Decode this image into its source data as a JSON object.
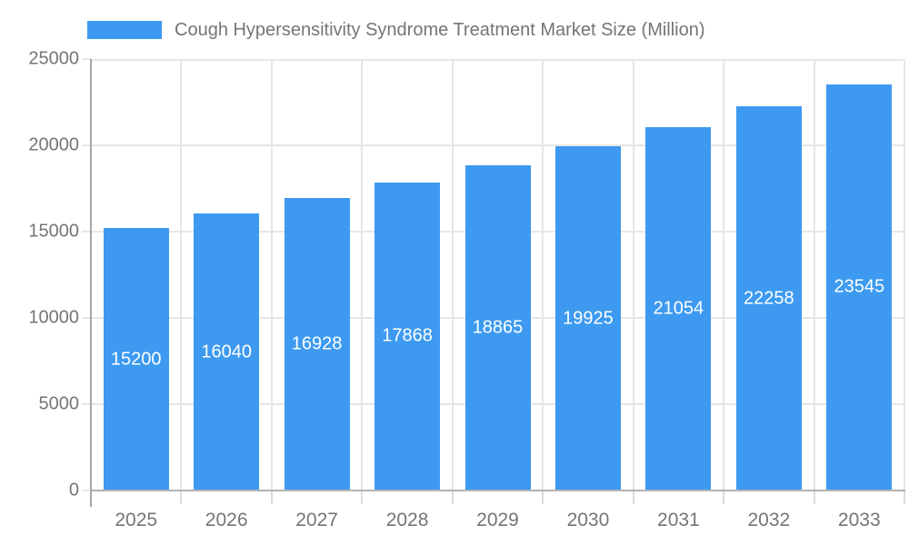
{
  "chart_data": {
    "type": "bar",
    "title": "Cough Hypersensitivity Syndrome Treatment Market Size (Million)",
    "categories": [
      "2025",
      "2026",
      "2027",
      "2028",
      "2029",
      "2030",
      "2031",
      "2032",
      "2033"
    ],
    "values": [
      15200,
      16040,
      16928,
      17868,
      18865,
      19925,
      21054,
      22258,
      23545
    ],
    "xlabel": "",
    "ylabel": "",
    "ylim": [
      0,
      25000
    ],
    "yticks": [
      0,
      5000,
      10000,
      15000,
      20000,
      25000
    ],
    "grid": true,
    "legend_position": "top",
    "value_labels": "inside-center"
  },
  "legend": {
    "label": "Cough Hypersensitivity Syndrome Treatment Market Size (Million)"
  },
  "colors": {
    "bar": "#3D9AF0",
    "value_label": "#FFFFFF",
    "text": "#757575",
    "gridline": "#E6E6E6",
    "axis_line": "#A6A6A6",
    "baseline": "#B3B3B3",
    "x_tick": "#DCDCDC",
    "background": "#FFFFFF"
  }
}
